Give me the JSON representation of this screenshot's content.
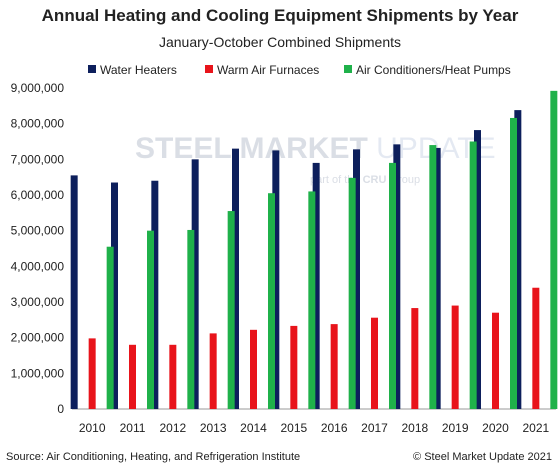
{
  "chart_data": {
    "type": "bar",
    "title": "Annual Heating and Cooling Equipment Shipments by Year",
    "subtitle": "January-October  Combined Shipments",
    "categories": [
      "2010",
      "2011",
      "2012",
      "2013",
      "2014",
      "2015",
      "2016",
      "2017",
      "2018",
      "2019",
      "2020",
      "2021"
    ],
    "series": [
      {
        "name": "Water Heaters",
        "color": "#0d1f5c",
        "values": [
          6550000,
          6350000,
          6400000,
          7000000,
          7300000,
          7250000,
          6900000,
          7280000,
          7420000,
          7320000,
          7820000,
          8380000
        ]
      },
      {
        "name": "Warm Air Furnaces",
        "color": "#e8141b",
        "values": [
          1980000,
          1800000,
          1800000,
          2120000,
          2220000,
          2330000,
          2380000,
          2560000,
          2830000,
          2900000,
          2700000,
          3400000
        ]
      },
      {
        "name": "Air Conditioners/Heat Pumps",
        "color": "#1fb14a",
        "values": [
          4550000,
          5000000,
          5020000,
          5550000,
          6050000,
          6100000,
          6480000,
          6900000,
          7400000,
          7500000,
          8160000,
          8920000
        ]
      }
    ],
    "ylim": [
      0,
      9000000
    ],
    "yticks": [
      "0",
      "1,000,000",
      "2,000,000",
      "3,000,000",
      "4,000,000",
      "5,000,000",
      "6,000,000",
      "7,000,000",
      "8,000,000",
      "9,000,000"
    ],
    "legend_position": "top",
    "grid": false
  },
  "watermark": {
    "main_a": "STEEL ",
    "main_b": "MARKET ",
    "main_c": "UPDATE",
    "sub_a": "part of the ",
    "sub_badge": "CRU",
    "sub_b": " Group"
  },
  "footer": {
    "source": "Source: Air Conditioning, Heating, and Refrigeration Institute",
    "copyright": "© Steel Market Update 2021"
  }
}
